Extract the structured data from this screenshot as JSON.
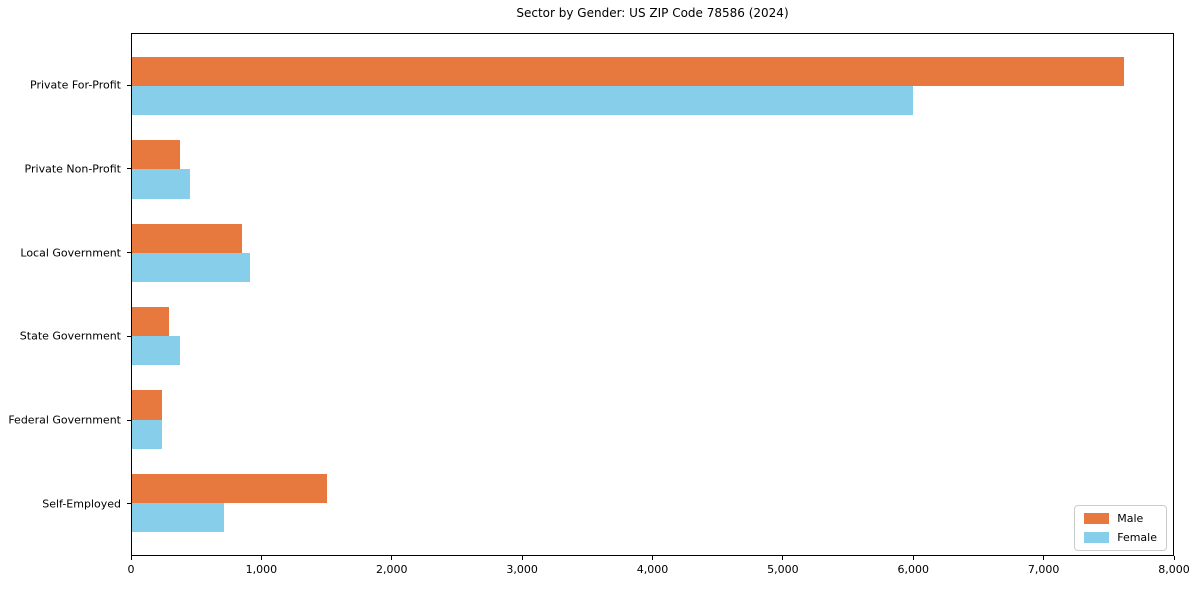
{
  "title": "Sector by Gender: US ZIP Code 78586 (2024)",
  "chart_data": {
    "type": "bar",
    "orientation": "horizontal",
    "title": "Sector by Gender: US ZIP Code 78586 (2024)",
    "categories": [
      "Private For-Profit",
      "Private Non-Profit",
      "Local Government",
      "State Government",
      "Federal Government",
      "Self-Employed"
    ],
    "series": [
      {
        "name": "Male",
        "color": "#e8793e",
        "values": [
          7620,
          370,
          845,
          285,
          230,
          1500
        ]
      },
      {
        "name": "Female",
        "color": "#87ceeb",
        "values": [
          6000,
          445,
          905,
          370,
          230,
          705
        ]
      }
    ],
    "xlabel": "",
    "ylabel": "",
    "xlim": [
      0,
      8000
    ],
    "x_ticks": [
      0,
      1000,
      2000,
      3000,
      4000,
      5000,
      6000,
      7000,
      8000
    ],
    "x_tick_labels": [
      "0",
      "1,000",
      "2,000",
      "3,000",
      "4,000",
      "5,000",
      "6,000",
      "7,000",
      "8,000"
    ],
    "grid": false,
    "legend_position": "lower right"
  }
}
